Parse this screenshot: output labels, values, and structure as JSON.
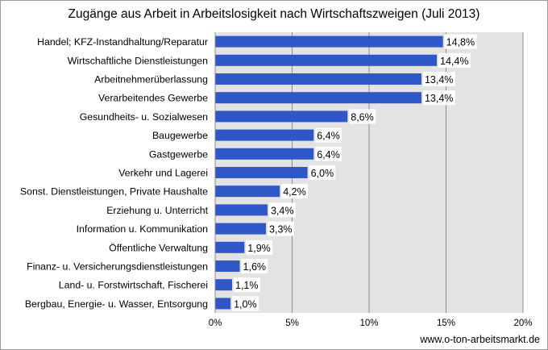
{
  "chart_data": {
    "type": "bar",
    "orientation": "horizontal",
    "title": "Zugänge aus Arbeit in Arbeitslosigkeit nach Wirtschaftszweigen (Juli 2013)",
    "categories": [
      "Handel; KFZ-Instandhaltung/Reparatur",
      "Wirtschaftliche Dienstleistungen",
      "Arbeitnehmerüberlassung",
      "Verarbeitendes Gewerbe",
      "Gesundheits- u. Sozialwesen",
      "Baugewerbe",
      "Gastgewerbe",
      "Verkehr und Lagerei",
      "Sonst. Dienstleistungen, Private Haushalte",
      "Erziehung u. Unterricht",
      "Information u. Kommunikation",
      "Öffentliche Verwaltung",
      "Finanz- u. Versicherungsdienstleistungen",
      "Land- u. Forstwirtschaft, Fischerei",
      "Bergbau, Energie- u. Wasser, Entsorgung"
    ],
    "values": [
      14.8,
      14.4,
      13.4,
      13.4,
      8.6,
      6.4,
      6.4,
      6.0,
      4.2,
      3.4,
      3.3,
      1.9,
      1.6,
      1.1,
      1.0
    ],
    "value_labels": [
      "14,8%",
      "14,4%",
      "13,4%",
      "13,4%",
      "8,6%",
      "6,4%",
      "6,4%",
      "6,0%",
      "4,2%",
      "3,4%",
      "3,3%",
      "1,9%",
      "1,6%",
      "1,1%",
      "1,0%"
    ],
    "xlim": [
      0,
      20
    ],
    "xticks": [
      0,
      5,
      10,
      15,
      20
    ],
    "xtick_labels": [
      "0%",
      "5%",
      "10%",
      "15%",
      "20%"
    ],
    "xlabel": "",
    "ylabel": "",
    "grid": true,
    "legend": "none",
    "colors": {
      "bar": "#2f57c8",
      "plot_background": "#e3e3e3",
      "gridline": "#8c8c8c"
    }
  },
  "footer": {
    "source": "www.o-ton-arbeitsmarkt.de"
  }
}
